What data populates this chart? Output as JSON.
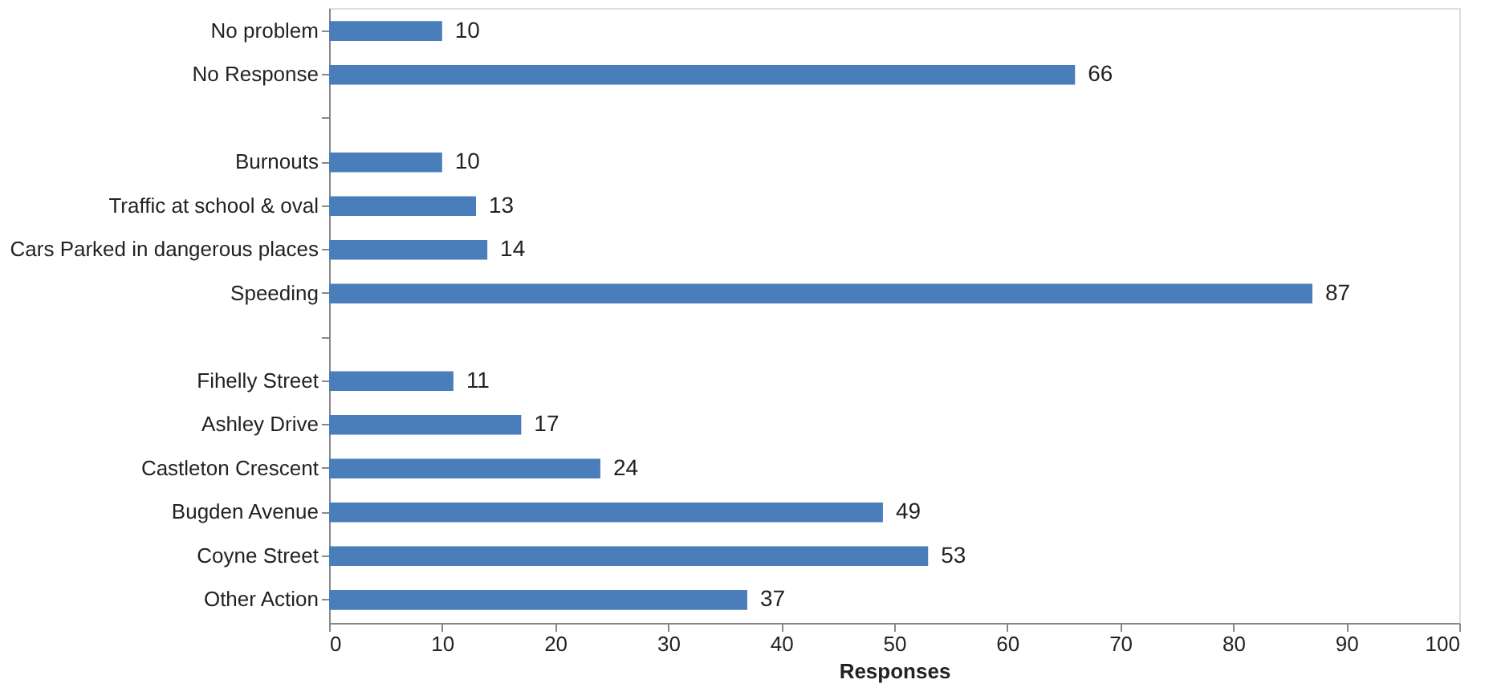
{
  "chart_data": {
    "type": "bar",
    "orientation": "horizontal",
    "xlabel": "Responses",
    "categories": [
      "No problem",
      "No Response",
      null,
      "Burnouts",
      "Traffic at school & oval",
      "Cars Parked in dangerous places",
      "Speeding",
      null,
      "Fihelly Street",
      "Ashley Drive",
      "Castleton Crescent",
      "Bugden Avenue",
      "Coyne Street",
      "Other Action"
    ],
    "values": [
      10,
      66,
      null,
      10,
      13,
      14,
      87,
      null,
      11,
      17,
      24,
      49,
      53,
      37
    ],
    "color": "#4a7ebb",
    "xlim": [
      0,
      100
    ],
    "xticks": [
      0,
      10,
      20,
      30,
      40,
      50,
      60,
      70,
      80,
      90,
      100
    ],
    "data_labels": true,
    "grid": false
  }
}
